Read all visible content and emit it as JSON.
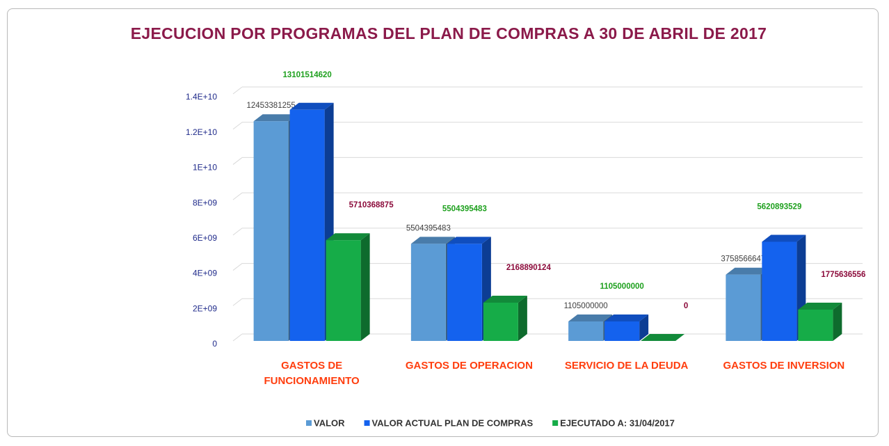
{
  "chart_data": {
    "type": "bar3d",
    "title": "EJECUCION POR  PROGRAMAS  DEL PLAN  DE COMPRAS A 30 DE   ABRIL DE 2017",
    "categories": [
      "GASTOS DE FUNCIONAMIENTO",
      "GASTOS DE OPERACION",
      "SERVICIO DE LA DEUDA",
      "GASTOS  DE  INVERSION"
    ],
    "series": [
      {
        "name": "VALOR",
        "color": "#5b9bd5",
        "label_color": "#404040",
        "values": [
          12453381255,
          5504395483,
          1105000000,
          3758566647
        ]
      },
      {
        "name": "VALOR ACTUAL PLAN DE COMPRAS",
        "color": "#1462ee",
        "label_color": "#1ea01e",
        "values": [
          13101514620,
          5504395483,
          1105000000,
          5620893529
        ]
      },
      {
        "name": "EJECUTADO A: 31/04/2017",
        "color": "#16ac48",
        "label_color": "#8b0a3a",
        "values": [
          5710368875,
          2168890124,
          0,
          1775636556
        ]
      }
    ],
    "ylim": [
      0,
      14000000000
    ],
    "yticks": [
      0,
      {
        "value": 2000000000,
        "label": "2E+09"
      },
      {
        "value": 4000000000,
        "label": "4E+09"
      },
      {
        "value": 6000000000,
        "label": "6E+09"
      },
      {
        "value": 8000000000,
        "label": "8E+09"
      },
      {
        "value": 10000000000,
        "label": "1E+10"
      },
      {
        "value": 12000000000,
        "label": "1.2E+10"
      },
      {
        "value": 14000000000,
        "label": "1.4E+10"
      }
    ],
    "grid": true,
    "legend": "bottom"
  }
}
